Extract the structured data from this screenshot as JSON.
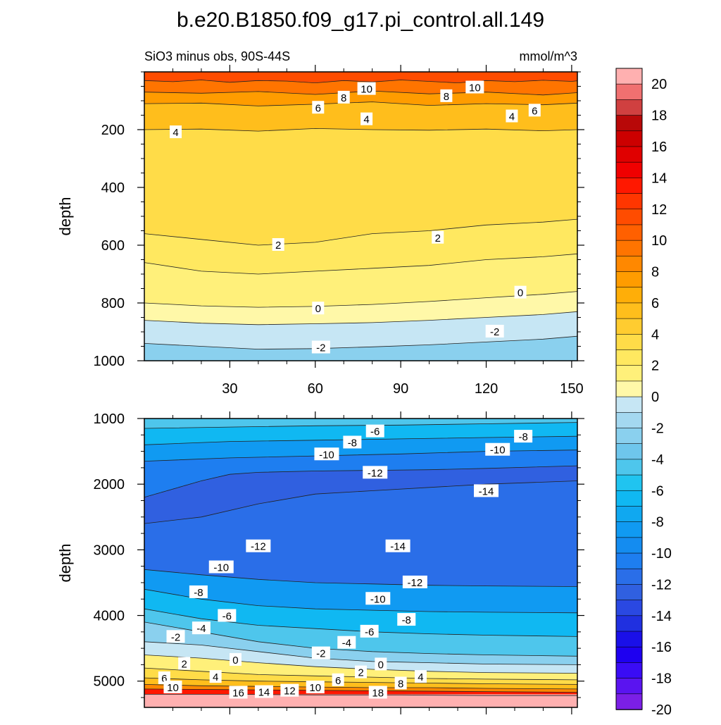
{
  "title": "b.e20.B1850.f09_g17.pi_control.all.149",
  "subtitle_left": "SiO3 minus obs, 90S-44S",
  "subtitle_right": "mmol/m^3",
  "colors": {
    "c-20": "#7b1fe6",
    "c-19": "#5a14f0",
    "c-18": "#3a0cf5",
    "c-17": "#1e00f0",
    "c-16": "#1a10e8",
    "c-15": "#2030e0",
    "c-14": "#2a48e2",
    "c-13": "#3060e0",
    "c-12": "#2a6ee8",
    "c-11": "#1e7ef0",
    "c-10": "#148cf0",
    "c-9": "#109af2",
    "c-8": "#10a8f0",
    "c-7": "#10b8f2",
    "c-6": "#20c4f0",
    "c-5": "#4ec6ec",
    "c-4": "#6ec6ec",
    "c-3": "#8ad0ee",
    "c-2": "#a4d8f0",
    "c-1": "#c6e6f4",
    "c0": "#fff8a8",
    "c1": "#fff07a",
    "c2": "#ffe860",
    "c3": "#ffdc48",
    "c4": "#ffcc30",
    "c5": "#ffbe1c",
    "c6": "#ffae08",
    "c7": "#ff9c00",
    "c8": "#ff8800",
    "c9": "#ff7400",
    "c10": "#ff6000",
    "c11": "#ff4c00",
    "c12": "#ff3600",
    "c13": "#ff1800",
    "c14": "#f00000",
    "c15": "#e00000",
    "c16": "#cc0000",
    "c17": "#b80808",
    "c18": "#d04040",
    "c19": "#f07070",
    "c20": "#ffb0b0"
  },
  "chart_data": [
    {
      "type": "heatmap",
      "panel": "upper",
      "ylabel": "depth",
      "xlim": [
        0,
        152
      ],
      "ylim": [
        1000,
        0
      ],
      "x_ticks": [
        30,
        60,
        90,
        120,
        150
      ],
      "y_ticks": [
        200,
        400,
        600,
        800,
        1000
      ],
      "contour_lines": [
        {
          "level": 10,
          "x": [
            0,
            10,
            20,
            30,
            40,
            50,
            60,
            70,
            80,
            90,
            100,
            110,
            120,
            130,
            140,
            150,
            152
          ],
          "y": [
            30,
            34,
            28,
            36,
            30,
            32,
            38,
            30,
            35,
            28,
            33,
            38,
            30,
            34,
            29,
            33,
            31
          ]
        },
        {
          "level": 8,
          "x": [
            0,
            20,
            40,
            60,
            80,
            100,
            120,
            140,
            152
          ],
          "y": [
            70,
            74,
            68,
            78,
            66,
            76,
            70,
            80,
            72
          ]
        },
        {
          "level": 6,
          "x": [
            0,
            20,
            40,
            60,
            80,
            100,
            120,
            140,
            152
          ],
          "y": [
            110,
            108,
            118,
            112,
            104,
            116,
            110,
            114,
            108
          ]
        },
        {
          "level": 4,
          "x": [
            0,
            20,
            40,
            60,
            80,
            100,
            120,
            140,
            152
          ],
          "y": [
            200,
            198,
            205,
            196,
            200,
            202,
            198,
            204,
            200
          ]
        },
        {
          "level": 2,
          "x": [
            0,
            20,
            40,
            60,
            80,
            100,
            120,
            140,
            152
          ],
          "y": [
            560,
            580,
            600,
            590,
            560,
            550,
            530,
            520,
            510
          ]
        },
        {
          "level": 1,
          "x": [
            0,
            20,
            40,
            60,
            80,
            100,
            120,
            140,
            152
          ],
          "y": [
            660,
            690,
            700,
            690,
            680,
            670,
            650,
            640,
            630
          ]
        },
        {
          "level": 0,
          "x": [
            0,
            20,
            40,
            60,
            80,
            100,
            120,
            140,
            152
          ],
          "y": [
            800,
            810,
            815,
            812,
            805,
            795,
            782,
            770,
            760
          ]
        },
        {
          "level": -1,
          "x": [
            0,
            20,
            40,
            60,
            80,
            100,
            120,
            140,
            152
          ],
          "y": [
            860,
            870,
            875,
            872,
            868,
            860,
            850,
            840,
            830
          ]
        },
        {
          "level": -2,
          "x": [
            0,
            20,
            40,
            60,
            80,
            100,
            120,
            140,
            152
          ],
          "y": [
            940,
            950,
            960,
            958,
            952,
            945,
            935,
            925,
            915
          ]
        }
      ],
      "contour_labels": [
        {
          "text": "10",
          "x": 78,
          "y": 60
        },
        {
          "text": "8",
          "x": 70,
          "y": 90
        },
        {
          "text": "6",
          "x": 61,
          "y": 125
        },
        {
          "text": "8",
          "x": 106,
          "y": 85
        },
        {
          "text": "10",
          "x": 116,
          "y": 55
        },
        {
          "text": "6",
          "x": 137,
          "y": 135
        },
        {
          "text": "4",
          "x": 129,
          "y": 155
        },
        {
          "text": "4",
          "x": 78,
          "y": 165
        },
        {
          "text": "4",
          "x": 11,
          "y": 210
        },
        {
          "text": "2",
          "x": 47,
          "y": 600
        },
        {
          "text": "2",
          "x": 103,
          "y": 575
        },
        {
          "text": "0",
          "x": 61,
          "y": 820
        },
        {
          "text": "0",
          "x": 132,
          "y": 765
        },
        {
          "text": "-2",
          "x": 123,
          "y": 900
        },
        {
          "text": "-2",
          "x": 62,
          "y": 955
        }
      ]
    },
    {
      "type": "heatmap",
      "panel": "lower",
      "ylabel": "depth",
      "xlim": [
        0,
        152
      ],
      "ylim": [
        5400,
        1000
      ],
      "x_ticks": [
        30,
        60,
        90,
        120,
        150
      ],
      "y_ticks": [
        1000,
        2000,
        3000,
        4000,
        5000
      ],
      "contour_lines": [
        {
          "level": -6,
          "x": [
            0,
            30,
            60,
            90,
            120,
            152
          ],
          "y": [
            1150,
            1130,
            1110,
            1100,
            1080,
            1060
          ]
        },
        {
          "level": -8,
          "x": [
            0,
            30,
            60,
            90,
            120,
            152
          ],
          "y": [
            1400,
            1350,
            1330,
            1310,
            1290,
            1270
          ]
        },
        {
          "level": -10,
          "x": [
            0,
            30,
            60,
            90,
            120,
            152
          ],
          "y": [
            1650,
            1600,
            1570,
            1540,
            1500,
            1480
          ]
        },
        {
          "level": -12,
          "x": [
            0,
            20,
            30,
            40,
            60,
            80,
            100,
            120,
            152
          ],
          "y": [
            2200,
            1950,
            1850,
            1820,
            1800,
            1790,
            1780,
            1760,
            1720
          ]
        },
        {
          "level": -14,
          "x": [
            0,
            20,
            40,
            60,
            80,
            100,
            120,
            152
          ],
          "y": [
            2600,
            2500,
            2300,
            2150,
            2100,
            2050,
            2000,
            1950
          ]
        },
        {
          "level": -10,
          "x": [
            0,
            20,
            40,
            60,
            80,
            100,
            120,
            152
          ],
          "y": [
            3300,
            3380,
            3450,
            3500,
            3520,
            3540,
            3550,
            3560
          ]
        },
        {
          "level": -8,
          "x": [
            0,
            20,
            40,
            60,
            80,
            100,
            120,
            152
          ],
          "y": [
            3600,
            3750,
            3850,
            3900,
            3920,
            3940,
            3950,
            3960
          ]
        },
        {
          "level": -6,
          "x": [
            0,
            20,
            40,
            60,
            80,
            100,
            120,
            152
          ],
          "y": [
            3900,
            4050,
            4150,
            4200,
            4250,
            4280,
            4300,
            4320
          ]
        },
        {
          "level": -4,
          "x": [
            0,
            20,
            40,
            60,
            80,
            100,
            120,
            152
          ],
          "y": [
            4100,
            4250,
            4400,
            4500,
            4550,
            4580,
            4600,
            4620
          ]
        },
        {
          "level": -2,
          "x": [
            0,
            20,
            40,
            60,
            80,
            100,
            120,
            152
          ],
          "y": [
            4400,
            4450,
            4550,
            4650,
            4700,
            4720,
            4740,
            4750
          ]
        },
        {
          "level": 0,
          "x": [
            0,
            20,
            40,
            60,
            80,
            100,
            120,
            152
          ],
          "y": [
            4600,
            4650,
            4720,
            4780,
            4820,
            4850,
            4870,
            4880
          ]
        },
        {
          "level": 2,
          "x": [
            0,
            20,
            40,
            60,
            80,
            100,
            120,
            152
          ],
          "y": [
            4800,
            4850,
            4900,
            4920,
            4940,
            4960,
            4970,
            4980
          ]
        },
        {
          "level": 4,
          "x": [
            0,
            20,
            40,
            60,
            80,
            100,
            120,
            152
          ],
          "y": [
            4950,
            4980,
            5000,
            5010,
            5020,
            5030,
            5040,
            5050
          ]
        },
        {
          "level": 6,
          "x": [
            0,
            20,
            40,
            60,
            80,
            100,
            120,
            152
          ],
          "y": [
            5050,
            5070,
            5080,
            5090,
            5100,
            5100,
            5110,
            5120
          ]
        },
        {
          "level": 10,
          "x": [
            0,
            30,
            60,
            90,
            120,
            152
          ],
          "y": [
            5120,
            5130,
            5140,
            5150,
            5160,
            5170
          ]
        },
        {
          "level": 16,
          "x": [
            0,
            30,
            60,
            90,
            120,
            152
          ],
          "y": [
            5200,
            5200,
            5210,
            5210,
            5220,
            5220
          ]
        }
      ],
      "contour_labels": [
        {
          "text": "-6",
          "x": 81,
          "y": 1200
        },
        {
          "text": "-8",
          "x": 73,
          "y": 1370
        },
        {
          "text": "-10",
          "x": 64,
          "y": 1550
        },
        {
          "text": "-12",
          "x": 81,
          "y": 1830
        },
        {
          "text": "-8",
          "x": 133,
          "y": 1280
        },
        {
          "text": "-10",
          "x": 124,
          "y": 1480
        },
        {
          "text": "-14",
          "x": 120,
          "y": 2110
        },
        {
          "text": "-12",
          "x": 40,
          "y": 2950
        },
        {
          "text": "-14",
          "x": 89,
          "y": 2950
        },
        {
          "text": "-10",
          "x": 27,
          "y": 3270
        },
        {
          "text": "-12",
          "x": 95,
          "y": 3500
        },
        {
          "text": "-8",
          "x": 19,
          "y": 3650
        },
        {
          "text": "-10",
          "x": 82,
          "y": 3750
        },
        {
          "text": "-6",
          "x": 29,
          "y": 4010
        },
        {
          "text": "-8",
          "x": 92,
          "y": 4070
        },
        {
          "text": "-4",
          "x": 20,
          "y": 4200
        },
        {
          "text": "-2",
          "x": 11,
          "y": 4330
        },
        {
          "text": "-6",
          "x": 79,
          "y": 4250
        },
        {
          "text": "-4",
          "x": 71,
          "y": 4420
        },
        {
          "text": "-2",
          "x": 62,
          "y": 4580
        },
        {
          "text": "0",
          "x": 32,
          "y": 4680
        },
        {
          "text": "2",
          "x": 14,
          "y": 4740
        },
        {
          "text": "0",
          "x": 83,
          "y": 4750
        },
        {
          "text": "2",
          "x": 76,
          "y": 4870
        },
        {
          "text": "6",
          "x": 68,
          "y": 4990
        },
        {
          "text": "4",
          "x": 25,
          "y": 4940
        },
        {
          "text": "6",
          "x": 7,
          "y": 4960
        },
        {
          "text": "4",
          "x": 97,
          "y": 4940
        },
        {
          "text": "8",
          "x": 90,
          "y": 5040
        },
        {
          "text": "10",
          "x": 10,
          "y": 5100
        },
        {
          "text": "10",
          "x": 60,
          "y": 5100
        },
        {
          "text": "12",
          "x": 51,
          "y": 5150
        },
        {
          "text": "14",
          "x": 42,
          "y": 5170
        },
        {
          "text": "16",
          "x": 33,
          "y": 5180
        },
        {
          "text": "18",
          "x": 82,
          "y": 5180
        }
      ]
    },
    {
      "type": "colorbar",
      "levels": [
        20,
        19,
        18,
        17,
        16,
        15,
        14,
        13,
        12,
        11,
        10,
        9,
        8,
        7,
        6,
        5,
        4,
        3,
        2,
        1,
        0,
        -1,
        -2,
        -3,
        -4,
        -5,
        -6,
        -7,
        -8,
        -9,
        -10,
        -11,
        -12,
        -13,
        -14,
        -15,
        -16,
        -17,
        -18,
        -19,
        -20
      ],
      "tick_labels": [
        "20",
        "18",
        "16",
        "14",
        "12",
        "10",
        "8",
        "6",
        "4",
        "2",
        "0",
        "-2",
        "-4",
        "-6",
        "-8",
        "-10",
        "-12",
        "-14",
        "-16",
        "-18",
        "-20"
      ]
    }
  ]
}
